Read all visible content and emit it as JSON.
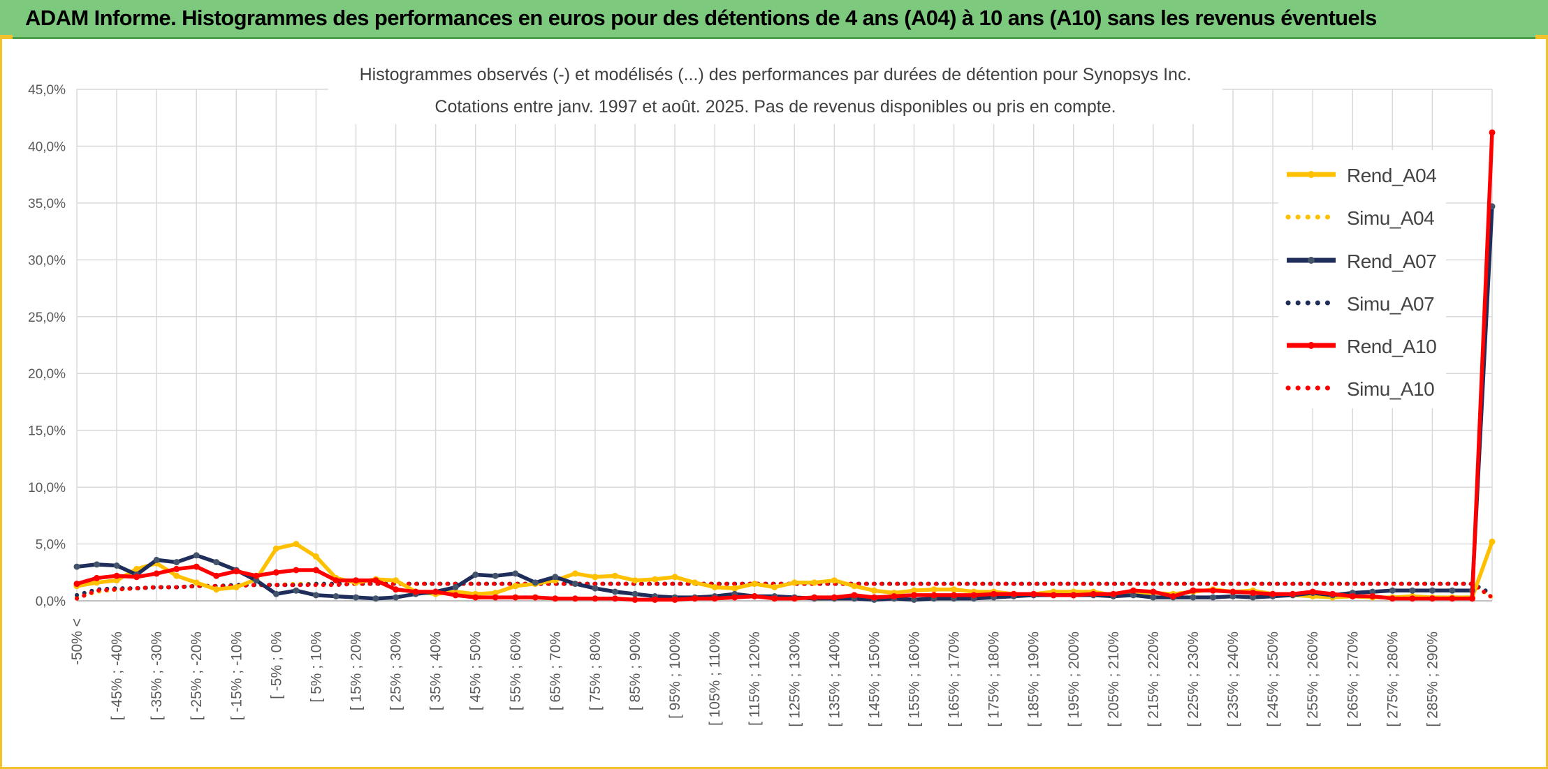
{
  "banner": {
    "title": "ADAM Informe. Histogrammes des performances en euros pour des détentions de 4 ans (A04) à 10 ans (A10) sans les revenus éventuels"
  },
  "chart_data": {
    "type": "line",
    "title": "Histogrammes observés (-) et modélisés (...) des performances par durées de détention pour Synopsys Inc.",
    "subtitle": "Cotations entre janv. 1997 et août. 2025. Pas de revenus disponibles ou pris en compte.",
    "ylim": [
      0,
      45
    ],
    "y_ticks": [
      "0,0%",
      "5,0%",
      "10,0%",
      "15,0%",
      "20,0%",
      "25,0%",
      "30,0%",
      "35,0%",
      "40,0%",
      "45,0%"
    ],
    "x_tick_labels": [
      "-50% <",
      "[ -45% ; -40%",
      "[ -35% ; -30%",
      "[ -25% ; -20%",
      "[ -15% ; -10%",
      "[ -5% ; 0%",
      "[ 5% ; 10%",
      "[ 15% ; 20%",
      "[ 25% ; 30%",
      "[ 35% ; 40%",
      "[ 45% ; 50%",
      "[ 55% ; 60%",
      "[ 65% ; 70%",
      "[ 75% ; 80%",
      "[ 85% ; 90%",
      "[ 95% ; 100%",
      "[ 105% ; 110%",
      "[ 115% ; 120%",
      "[ 125% ; 130%",
      "[ 135% ; 140%",
      "[ 145% ; 150%",
      "[ 155% ; 160%",
      "[ 165% ; 170%",
      "[ 175% ; 180%",
      "[ 185% ; 190%",
      "[ 195% ; 200%",
      "[ 205% ; 210%",
      "[ 215% ; 220%",
      "[ 225% ; 230%",
      "[ 235% ; 240%",
      "[ 245% ; 250%",
      "[ 255% ; 260%",
      "[ 265% ; 270%",
      "[ 275% ; 280%",
      "[ 285% ; 290%"
    ],
    "grid": true,
    "legend_position": "right",
    "series": [
      {
        "name": "Rend_A04",
        "style": "solid",
        "color": "#ffc000",
        "values": [
          1.3,
          1.6,
          1.8,
          2.8,
          3.3,
          2.2,
          1.6,
          1.0,
          1.2,
          1.9,
          4.6,
          5.0,
          3.9,
          2.0,
          1.6,
          1.9,
          1.8,
          0.8,
          0.6,
          0.8,
          0.6,
          0.7,
          1.3,
          1.5,
          1.8,
          2.4,
          2.1,
          2.2,
          1.8,
          1.9,
          2.1,
          1.6,
          1.2,
          1.1,
          1.5,
          1.2,
          1.6,
          1.6,
          1.8,
          1.3,
          0.9,
          0.7,
          0.9,
          1.0,
          1.0,
          0.8,
          0.8,
          0.6,
          0.6,
          0.8,
          0.8,
          0.8,
          0.5,
          0.6,
          0.7,
          0.6,
          0.8,
          1.0,
          0.8,
          0.9,
          0.6,
          0.5,
          0.4,
          0.3,
          0.4,
          0.3,
          0.3,
          0.4,
          0.3,
          0.3,
          0.3,
          5.2
        ]
      },
      {
        "name": "Simu_A04",
        "style": "dotted",
        "color": "#ffc000",
        "values": [
          0.3,
          0.8,
          1.0,
          1.1,
          1.2,
          1.2,
          1.3,
          1.3,
          1.4,
          1.4,
          1.4,
          1.5,
          1.5,
          1.5,
          1.5,
          1.5,
          1.5,
          1.5,
          1.5,
          1.5,
          1.5,
          1.5,
          1.5,
          1.5,
          1.5,
          1.5,
          1.5,
          1.5,
          1.5,
          1.5,
          1.5,
          1.5,
          1.5,
          1.5,
          1.5,
          1.5,
          1.5,
          1.5,
          1.5,
          1.5,
          1.5,
          1.5,
          1.5,
          1.5,
          1.5,
          1.5,
          1.5,
          1.5,
          1.5,
          1.5,
          1.5,
          1.5,
          1.5,
          1.5,
          1.5,
          1.5,
          1.5,
          1.5,
          1.5,
          1.5,
          1.5,
          1.5,
          1.5,
          1.5,
          1.5,
          1.5,
          1.5,
          1.5,
          1.5,
          1.5,
          1.5,
          0.3
        ]
      },
      {
        "name": "Rend_A07",
        "style": "solid",
        "color": "#1f2d5a",
        "values": [
          3.0,
          3.2,
          3.1,
          2.3,
          3.6,
          3.4,
          4.0,
          3.4,
          2.7,
          1.8,
          0.6,
          0.9,
          0.5,
          0.4,
          0.3,
          0.2,
          0.3,
          0.6,
          0.8,
          1.2,
          2.3,
          2.2,
          2.4,
          1.6,
          2.1,
          1.5,
          1.1,
          0.8,
          0.6,
          0.4,
          0.3,
          0.3,
          0.4,
          0.6,
          0.4,
          0.4,
          0.3,
          0.2,
          0.2,
          0.2,
          0.1,
          0.2,
          0.1,
          0.2,
          0.2,
          0.2,
          0.3,
          0.4,
          0.5,
          0.5,
          0.5,
          0.5,
          0.4,
          0.5,
          0.3,
          0.3,
          0.3,
          0.3,
          0.4,
          0.3,
          0.4,
          0.5,
          0.7,
          0.5,
          0.7,
          0.8,
          0.9,
          0.9,
          0.9,
          0.9,
          0.9,
          34.7
        ]
      },
      {
        "name": "Simu_A07",
        "style": "dotted",
        "color": "#1f2d5a",
        "values": [
          0.5,
          1.0,
          1.1,
          1.1,
          1.2,
          1.2,
          1.3,
          1.3,
          1.4,
          1.4,
          1.4,
          1.4,
          1.5,
          1.5,
          1.5,
          1.5,
          1.5,
          1.5,
          1.5,
          1.5,
          1.5,
          1.5,
          1.5,
          1.5,
          1.5,
          1.5,
          1.5,
          1.5,
          1.5,
          1.5,
          1.5,
          1.5,
          1.5,
          1.5,
          1.5,
          1.5,
          1.5,
          1.5,
          1.5,
          1.5,
          1.5,
          1.5,
          1.5,
          1.5,
          1.5,
          1.5,
          1.5,
          1.5,
          1.5,
          1.5,
          1.5,
          1.5,
          1.5,
          1.5,
          1.5,
          1.5,
          1.5,
          1.5,
          1.5,
          1.5,
          1.5,
          1.5,
          1.5,
          1.5,
          1.5,
          1.5,
          1.5,
          1.5,
          1.5,
          1.5,
          1.5,
          0.6
        ]
      },
      {
        "name": "Rend_A10",
        "style": "solid",
        "color": "#ff0000",
        "values": [
          1.5,
          2.0,
          2.2,
          2.1,
          2.4,
          2.8,
          3.0,
          2.2,
          2.6,
          2.2,
          2.5,
          2.7,
          2.7,
          1.8,
          1.8,
          1.8,
          1.0,
          0.8,
          0.8,
          0.5,
          0.3,
          0.3,
          0.3,
          0.3,
          0.2,
          0.2,
          0.2,
          0.2,
          0.1,
          0.1,
          0.1,
          0.2,
          0.2,
          0.3,
          0.4,
          0.2,
          0.2,
          0.3,
          0.3,
          0.5,
          0.3,
          0.4,
          0.5,
          0.5,
          0.5,
          0.5,
          0.6,
          0.6,
          0.6,
          0.5,
          0.5,
          0.6,
          0.6,
          0.9,
          0.8,
          0.4,
          0.9,
          0.9,
          0.8,
          0.7,
          0.6,
          0.6,
          0.8,
          0.6,
          0.4,
          0.4,
          0.2,
          0.2,
          0.2,
          0.2,
          0.2,
          41.2
        ]
      },
      {
        "name": "Simu_A10",
        "style": "dotted",
        "color": "#ff0000",
        "values": [
          0.2,
          0.9,
          1.0,
          1.1,
          1.2,
          1.2,
          1.3,
          1.3,
          1.3,
          1.4,
          1.4,
          1.4,
          1.4,
          1.4,
          1.5,
          1.5,
          1.5,
          1.5,
          1.5,
          1.5,
          1.5,
          1.5,
          1.5,
          1.5,
          1.5,
          1.5,
          1.5,
          1.5,
          1.5,
          1.5,
          1.5,
          1.5,
          1.5,
          1.5,
          1.5,
          1.5,
          1.5,
          1.5,
          1.5,
          1.5,
          1.5,
          1.5,
          1.5,
          1.5,
          1.5,
          1.5,
          1.5,
          1.5,
          1.5,
          1.5,
          1.5,
          1.5,
          1.5,
          1.5,
          1.5,
          1.5,
          1.5,
          1.5,
          1.5,
          1.5,
          1.5,
          1.5,
          1.5,
          1.5,
          1.5,
          1.5,
          1.5,
          1.5,
          1.5,
          1.5,
          1.5,
          0.3
        ]
      }
    ]
  }
}
